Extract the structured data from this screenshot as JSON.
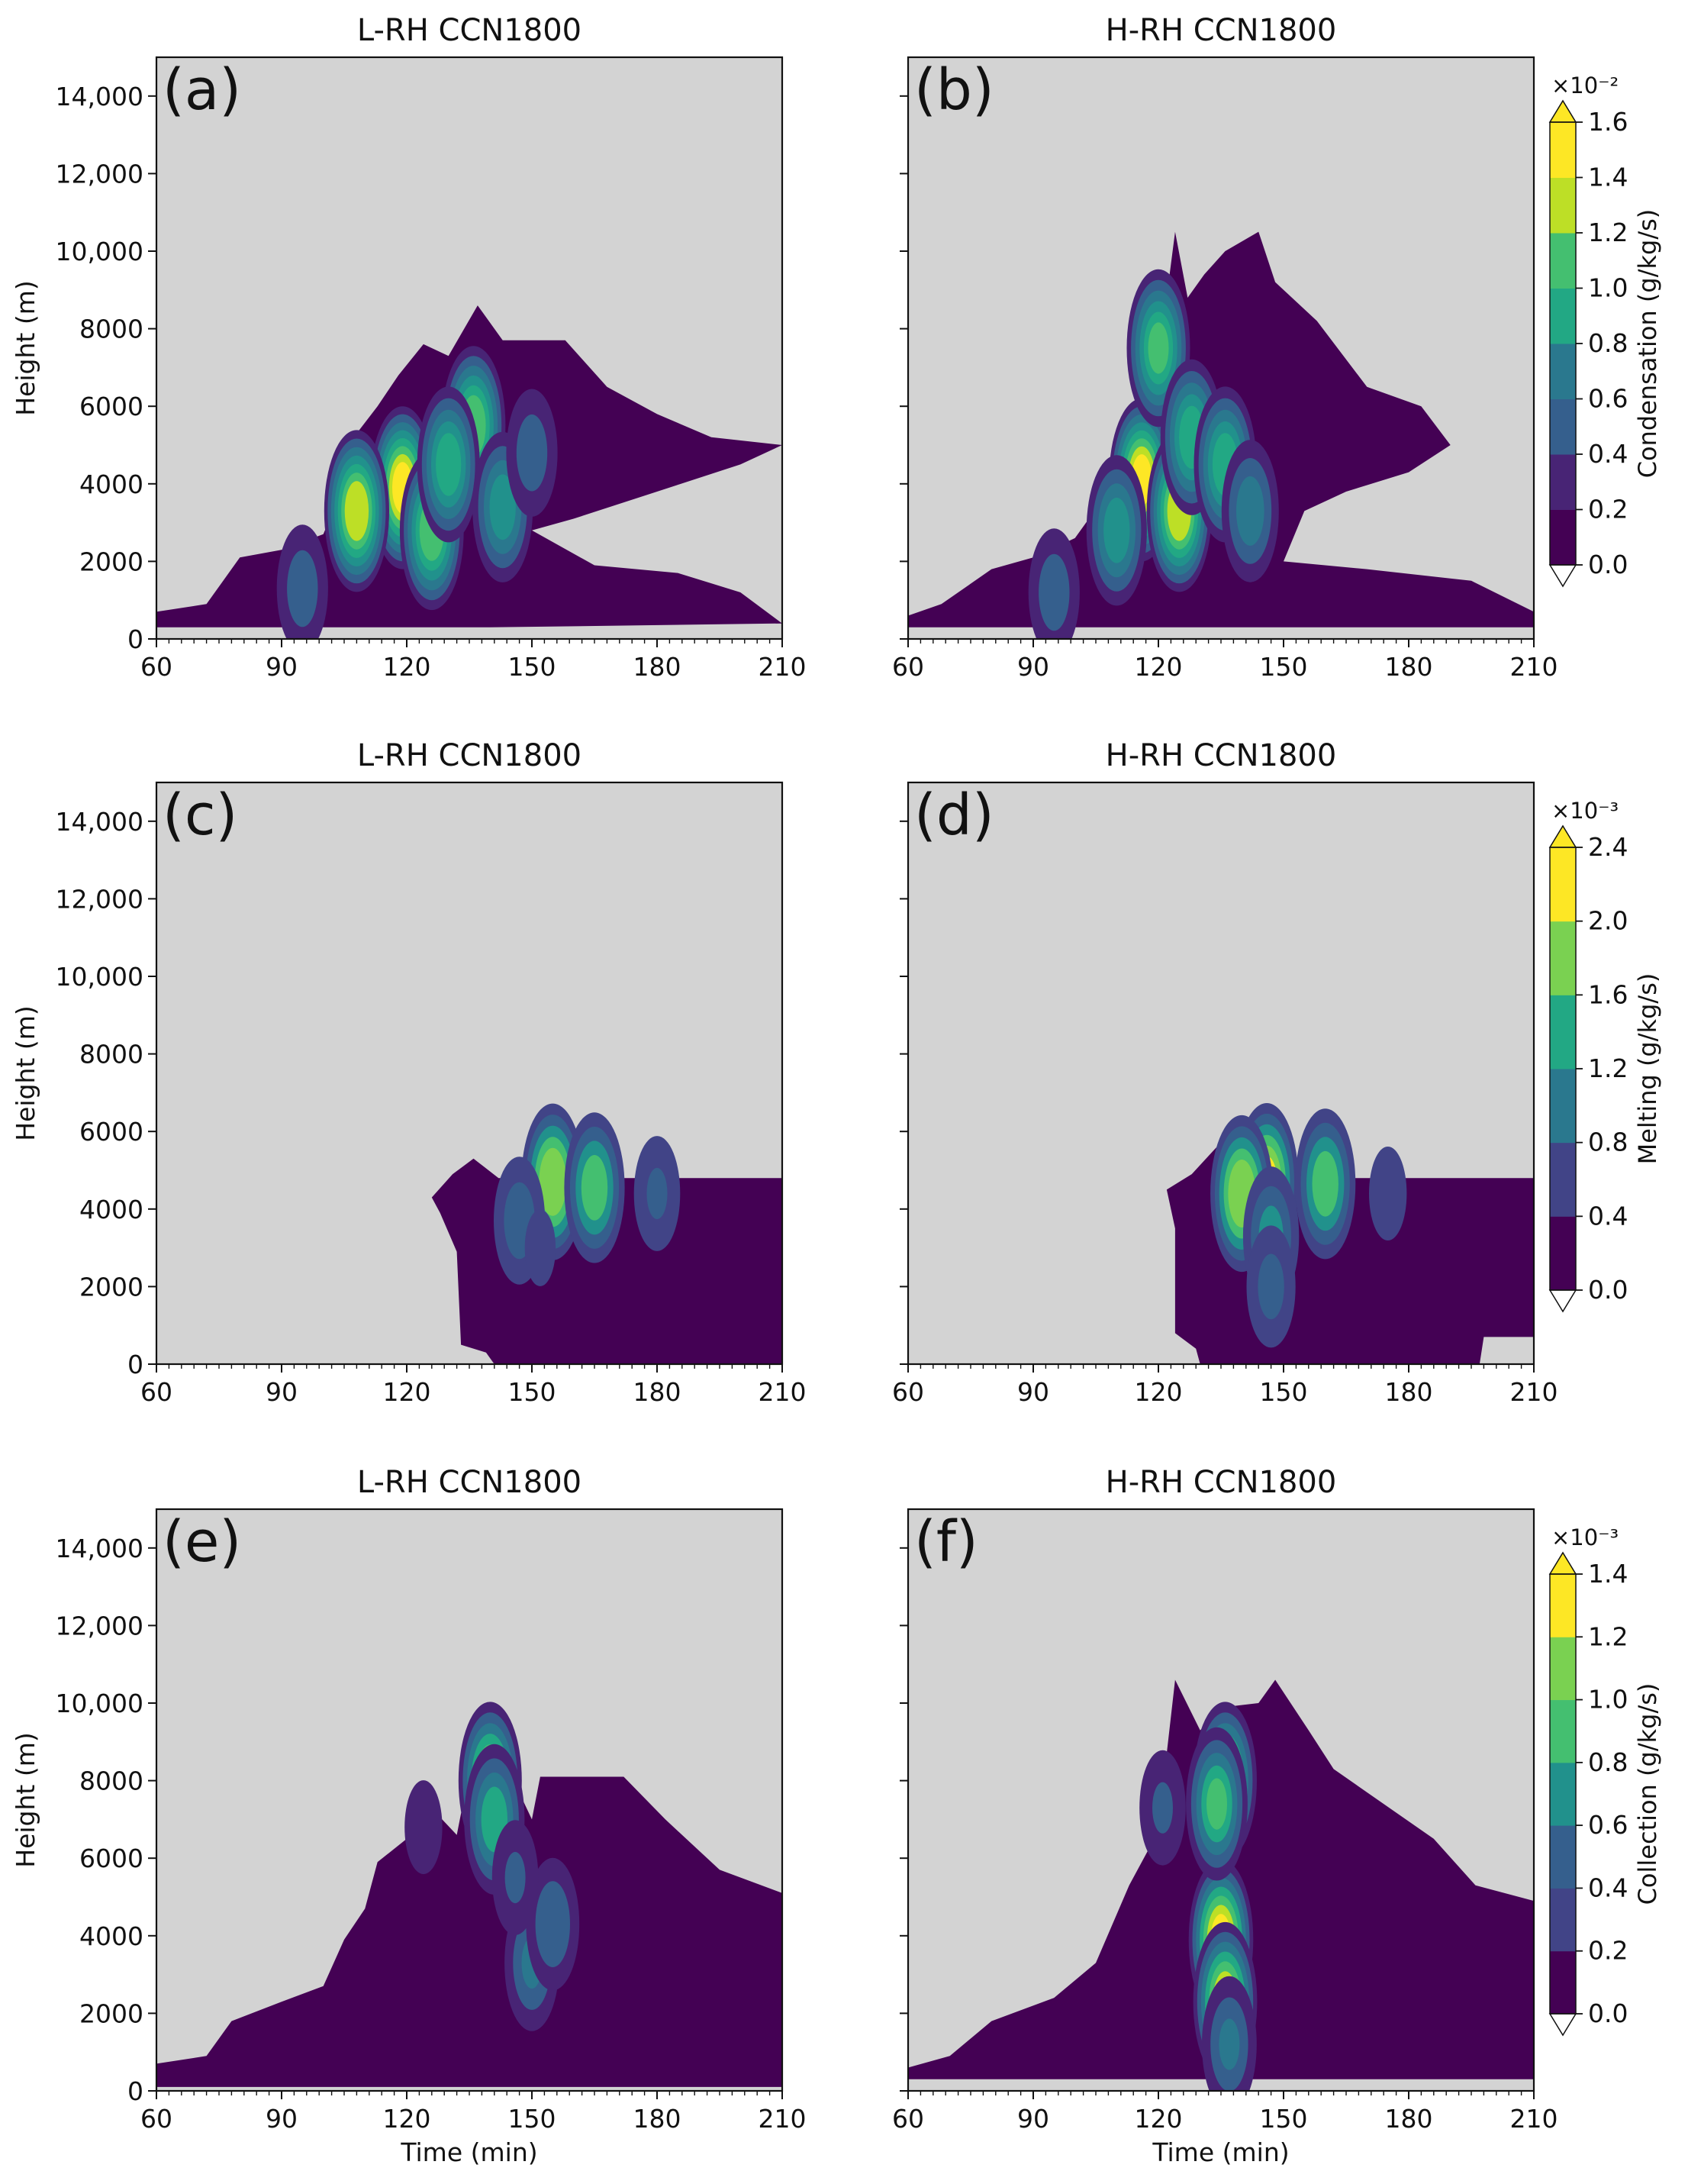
{
  "figure": {
    "xlabel": "Time (min)",
    "ylabel": "Height (m)",
    "xticks": [
      "60",
      "90",
      "120",
      "150",
      "180",
      "210"
    ],
    "yticks": [
      "0",
      "2000",
      "4000",
      "6000",
      "8000",
      "10,000",
      "12,000",
      "14,000"
    ],
    "xlim": [
      60,
      210
    ],
    "ylim": [
      0,
      15000
    ],
    "panel_titles": [
      "L-RH CCN1800",
      "H-RH CCN1800",
      "L-RH CCN1800",
      "H-RH CCN1800",
      "L-RH CCN1800",
      "H-RH CCN1800"
    ],
    "panel_letters": [
      "(a)",
      "(b)",
      "(c)",
      "(d)",
      "(e)",
      "(f)"
    ]
  },
  "colors": {
    "background": "#d3d3d3",
    "viridis": [
      "#440154",
      "#482475",
      "#414487",
      "#355f8d",
      "#2a788e",
      "#21918c",
      "#22a884",
      "#44bf70",
      "#7ad151",
      "#bddf26",
      "#fde725"
    ]
  },
  "colorbars": [
    {
      "label": "Condensation (g/kg/s)",
      "multiplier": "×10⁻²",
      "ticks": [
        "0.0",
        "0.2",
        "0.4",
        "0.6",
        "0.8",
        "1.0",
        "1.2",
        "1.4",
        "1.6"
      ]
    },
    {
      "label": "Melting (g/kg/s)",
      "multiplier": "×10⁻³",
      "ticks": [
        "0.0",
        "0.4",
        "0.8",
        "1.2",
        "1.6",
        "2.0",
        "2.4"
      ]
    },
    {
      "label": "Collection (g/kg/s)",
      "multiplier": "×10⁻³",
      "ticks": [
        "0.0",
        "0.2",
        "0.4",
        "0.6",
        "0.8",
        "1.0",
        "1.2",
        "1.4"
      ]
    }
  ],
  "chart_data": [
    {
      "type": "contour",
      "panel": "(a)",
      "title": "L-RH CCN1800",
      "variable": "Condensation (g/kg/s)",
      "scale": "x10^-2",
      "xlim": [
        60,
        210
      ],
      "ylim": [
        0,
        15000
      ],
      "levels": [
        0,
        0.2,
        0.4,
        0.6,
        0.8,
        1.0,
        1.2,
        1.4,
        1.6
      ],
      "outline": [
        [
          60,
          700
        ],
        [
          72,
          900
        ],
        [
          80,
          2100
        ],
        [
          90,
          2300
        ],
        [
          100,
          2700
        ],
        [
          105,
          4000
        ],
        [
          108,
          5300
        ],
        [
          113,
          6000
        ],
        [
          118,
          6800
        ],
        [
          124,
          7600
        ],
        [
          130,
          7300
        ],
        [
          137,
          8600
        ],
        [
          143,
          7700
        ],
        [
          158,
          7700
        ],
        [
          168,
          6500
        ],
        [
          180,
          5800
        ],
        [
          193,
          5200
        ],
        [
          210,
          5000
        ],
        [
          200,
          4500
        ],
        [
          180,
          3800
        ],
        [
          160,
          3100
        ],
        [
          150,
          2800
        ],
        [
          165,
          1900
        ],
        [
          185,
          1700
        ],
        [
          200,
          1200
        ],
        [
          210,
          400
        ],
        [
          140,
          300
        ],
        [
          60,
          300
        ]
      ],
      "cores": [
        {
          "t": 119,
          "z": 3900,
          "v": 1.6
        },
        {
          "t": 108,
          "z": 3300,
          "v": 1.5
        },
        {
          "t": 126,
          "z": 2800,
          "v": 1.3
        },
        {
          "t": 136,
          "z": 5500,
          "v": 1.3
        },
        {
          "t": 130,
          "z": 4500,
          "v": 1.1
        },
        {
          "t": 143,
          "z": 3400,
          "v": 0.9
        },
        {
          "t": 95,
          "z": 1300,
          "v": 0.5
        },
        {
          "t": 150,
          "z": 4800,
          "v": 0.5
        }
      ]
    },
    {
      "type": "contour",
      "panel": "(b)",
      "title": "H-RH CCN1800",
      "variable": "Condensation (g/kg/s)",
      "scale": "x10^-2",
      "xlim": [
        60,
        210
      ],
      "ylim": [
        0,
        15000
      ],
      "levels": [
        0,
        0.2,
        0.4,
        0.6,
        0.8,
        1.0,
        1.2,
        1.4,
        1.6
      ],
      "outline": [
        [
          60,
          600
        ],
        [
          68,
          900
        ],
        [
          80,
          1800
        ],
        [
          90,
          2100
        ],
        [
          100,
          2600
        ],
        [
          106,
          3500
        ],
        [
          112,
          5000
        ],
        [
          117,
          6300
        ],
        [
          121,
          8000
        ],
        [
          124,
          10500
        ],
        [
          127,
          8800
        ],
        [
          131,
          9400
        ],
        [
          136,
          10000
        ],
        [
          144,
          10500
        ],
        [
          148,
          9200
        ],
        [
          158,
          8200
        ],
        [
          170,
          6500
        ],
        [
          183,
          6000
        ],
        [
          190,
          5000
        ],
        [
          180,
          4300
        ],
        [
          165,
          3800
        ],
        [
          155,
          3300
        ],
        [
          150,
          2000
        ],
        [
          170,
          1800
        ],
        [
          195,
          1500
        ],
        [
          210,
          700
        ],
        [
          210,
          300
        ],
        [
          60,
          300
        ]
      ],
      "cores": [
        {
          "t": 116,
          "z": 4100,
          "v": 1.6
        },
        {
          "t": 125,
          "z": 3300,
          "v": 1.5
        },
        {
          "t": 120,
          "z": 7500,
          "v": 1.2
        },
        {
          "t": 128,
          "z": 5200,
          "v": 1.1
        },
        {
          "t": 136,
          "z": 4500,
          "v": 1.1
        },
        {
          "t": 110,
          "z": 2800,
          "v": 0.9
        },
        {
          "t": 142,
          "z": 3300,
          "v": 0.7
        },
        {
          "t": 95,
          "z": 1200,
          "v": 0.5
        }
      ]
    },
    {
      "type": "contour",
      "panel": "(c)",
      "title": "L-RH CCN1800",
      "variable": "Melting (g/kg/s)",
      "scale": "x10^-3",
      "xlim": [
        60,
        210
      ],
      "ylim": [
        0,
        15000
      ],
      "levels": [
        0,
        0.4,
        0.8,
        1.2,
        1.6,
        2.0,
        2.4
      ],
      "outline": [
        [
          126,
          4300
        ],
        [
          131,
          4900
        ],
        [
          136,
          5300
        ],
        [
          142,
          4800
        ],
        [
          210,
          4800
        ],
        [
          210,
          0
        ],
        [
          141,
          0
        ],
        [
          139,
          300
        ],
        [
          133,
          500
        ],
        [
          132,
          2900
        ],
        [
          128,
          3900
        ]
      ],
      "cores": [
        {
          "t": 155,
          "z": 4700,
          "v": 2.3
        },
        {
          "t": 165,
          "z": 4550,
          "v": 1.8
        },
        {
          "t": 147,
          "z": 3700,
          "v": 1.0
        },
        {
          "t": 180,
          "z": 4400,
          "v": 0.8
        },
        {
          "t": 152,
          "z": 3000,
          "v": 0.5
        }
      ]
    },
    {
      "type": "contour",
      "panel": "(d)",
      "title": "H-RH CCN1800",
      "variable": "Melting (g/kg/s)",
      "scale": "x10^-3",
      "xlim": [
        60,
        210
      ],
      "ylim": [
        0,
        15000
      ],
      "levels": [
        0,
        0.4,
        0.8,
        1.2,
        1.6,
        2.0,
        2.4
      ],
      "outline": [
        [
          122,
          4500
        ],
        [
          128,
          4900
        ],
        [
          134,
          5600
        ],
        [
          140,
          5000
        ],
        [
          144,
          4800
        ],
        [
          210,
          4800
        ],
        [
          210,
          700
        ],
        [
          198,
          700
        ],
        [
          197,
          0
        ],
        [
          130,
          0
        ],
        [
          129,
          400
        ],
        [
          124,
          800
        ],
        [
          124,
          3500
        ]
      ],
      "cores": [
        {
          "t": 146,
          "z": 4700,
          "v": 2.4
        },
        {
          "t": 140,
          "z": 4400,
          "v": 2.3
        },
        {
          "t": 160,
          "z": 4650,
          "v": 1.8
        },
        {
          "t": 147,
          "z": 3300,
          "v": 1.3
        },
        {
          "t": 147,
          "z": 2000,
          "v": 0.9
        },
        {
          "t": 175,
          "z": 4400,
          "v": 0.6
        }
      ]
    },
    {
      "type": "contour",
      "panel": "(e)",
      "title": "L-RH CCN1800",
      "variable": "Collection (g/kg/s)",
      "scale": "x10^-3",
      "xlim": [
        60,
        210
      ],
      "ylim": [
        0,
        15000
      ],
      "levels": [
        0,
        0.2,
        0.4,
        0.6,
        0.8,
        1.0,
        1.2,
        1.4
      ],
      "outline": [
        [
          60,
          700
        ],
        [
          72,
          900
        ],
        [
          78,
          1800
        ],
        [
          90,
          2300
        ],
        [
          100,
          2700
        ],
        [
          105,
          3900
        ],
        [
          110,
          4700
        ],
        [
          113,
          5900
        ],
        [
          120,
          6500
        ],
        [
          125,
          7400
        ],
        [
          132,
          6600
        ],
        [
          136,
          8800
        ],
        [
          143,
          8600
        ],
        [
          150,
          7000
        ],
        [
          152,
          8100
        ],
        [
          172,
          8100
        ],
        [
          182,
          7000
        ],
        [
          195,
          5700
        ],
        [
          210,
          5100
        ],
        [
          210,
          100
        ],
        [
          60,
          100
        ]
      ],
      "cores": [
        {
          "t": 140,
          "z": 8000,
          "v": 1.2
        },
        {
          "t": 141,
          "z": 7000,
          "v": 0.9
        },
        {
          "t": 150,
          "z": 3300,
          "v": 0.6
        },
        {
          "t": 155,
          "z": 4300,
          "v": 0.55
        },
        {
          "t": 146,
          "z": 5500,
          "v": 0.4
        },
        {
          "t": 124,
          "z": 6800,
          "v": 0.3
        }
      ]
    },
    {
      "type": "contour",
      "panel": "(f)",
      "title": "H-RH CCN1800",
      "variable": "Collection (g/kg/s)",
      "scale": "x10^-3",
      "xlim": [
        60,
        210
      ],
      "ylim": [
        0,
        15000
      ],
      "levels": [
        0,
        0.2,
        0.4,
        0.6,
        0.8,
        1.0,
        1.2,
        1.4
      ],
      "outline": [
        [
          60,
          600
        ],
        [
          70,
          900
        ],
        [
          80,
          1800
        ],
        [
          95,
          2400
        ],
        [
          105,
          3300
        ],
        [
          113,
          5300
        ],
        [
          118,
          6300
        ],
        [
          122,
          8700
        ],
        [
          124,
          10600
        ],
        [
          130,
          9300
        ],
        [
          136,
          9900
        ],
        [
          144,
          10000
        ],
        [
          148,
          10600
        ],
        [
          156,
          9300
        ],
        [
          162,
          8300
        ],
        [
          174,
          7400
        ],
        [
          186,
          6500
        ],
        [
          196,
          5300
        ],
        [
          210,
          4900
        ],
        [
          210,
          300
        ],
        [
          60,
          300
        ]
      ],
      "cores": [
        {
          "t": 135,
          "z": 3900,
          "v": 1.4
        },
        {
          "t": 136,
          "z": 2300,
          "v": 1.3
        },
        {
          "t": 136,
          "z": 8000,
          "v": 1.2
        },
        {
          "t": 134,
          "z": 7400,
          "v": 1.0
        },
        {
          "t": 137,
          "z": 1200,
          "v": 0.6
        },
        {
          "t": 121,
          "z": 7300,
          "v": 0.4
        }
      ]
    }
  ]
}
